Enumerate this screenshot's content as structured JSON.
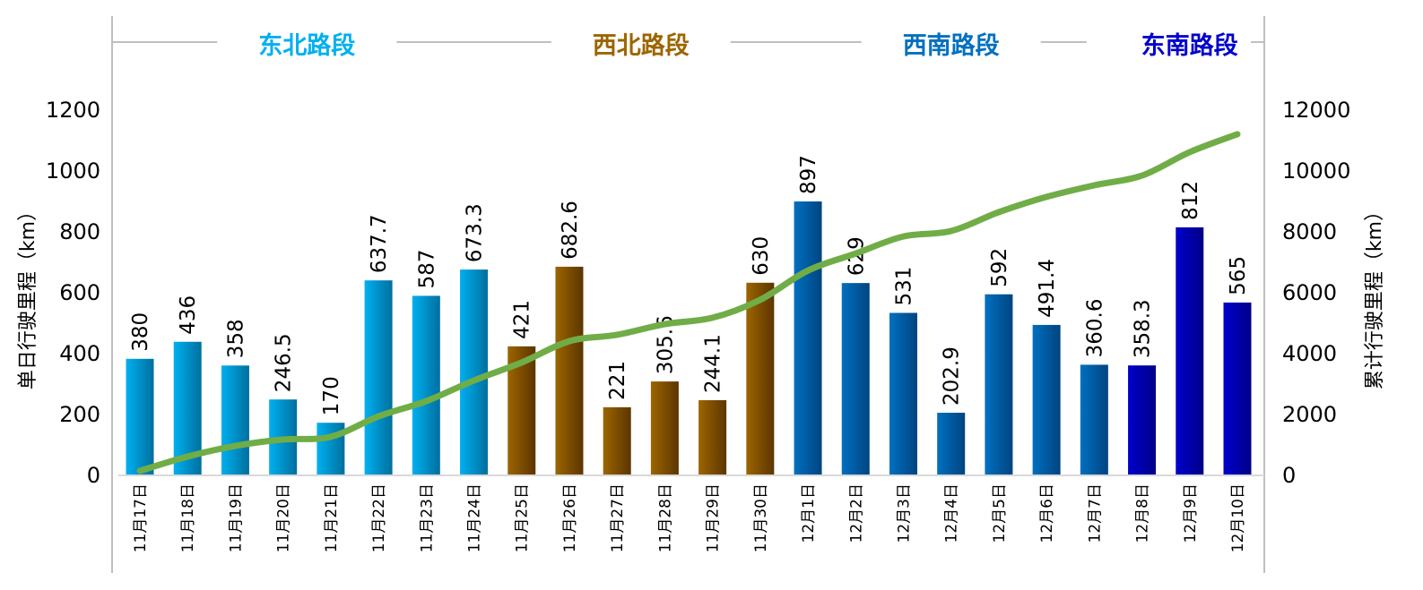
{
  "chart_data": {
    "type": "bar",
    "title": "",
    "categories": [
      "11月17日",
      "11月18日",
      "11月19日",
      "11月20日",
      "11月21日",
      "11月22日",
      "11月23日",
      "11月24日",
      "11月25日",
      "11月26日",
      "11月27日",
      "11月28日",
      "11月29日",
      "11月30日",
      "12月1日",
      "12月2日",
      "12月3日",
      "12月4日",
      "12月5日",
      "12月6日",
      "12月7日",
      "12月8日",
      "12月9日",
      "12月10日"
    ],
    "series": [
      {
        "name": "单日行驶里程",
        "type": "bar",
        "axis": "left",
        "values": [
          380,
          436,
          358,
          246.5,
          170,
          637.7,
          587,
          673.3,
          421,
          682.6,
          221,
          305.6,
          244.1,
          630,
          897,
          629,
          531,
          202.9,
          592,
          491.4,
          360.6,
          358.3,
          812,
          565
        ],
        "labels": [
          "380",
          "436",
          "358",
          "246.5",
          "170",
          "637.7",
          "587",
          "673.3",
          "421",
          "682.6",
          "221",
          "305.6",
          "244.1",
          "630",
          "897",
          "629",
          "531",
          "202.9",
          "592",
          "491.4",
          "360.6",
          "358.3",
          "812",
          "565"
        ]
      },
      {
        "name": "累计行驶里程",
        "type": "line",
        "axis": "right",
        "color": "#70ad47",
        "values": [
          120,
          590,
          940,
          1150,
          1240,
          1910,
          2410,
          3090,
          3680,
          4380,
          4590,
          4940,
          5150,
          5740,
          6700,
          7260,
          7820,
          8000,
          8620,
          9120,
          9500,
          9820,
          10590,
          11180
        ]
      }
    ],
    "groups": [
      {
        "label": "东北路段",
        "start": 0,
        "end": 7,
        "color": "#00b0f0",
        "dark": "#006f9e"
      },
      {
        "label": "西北路段",
        "start": 8,
        "end": 13,
        "color": "#9c6500",
        "dark": "#5c3500"
      },
      {
        "label": "西南路段",
        "start": 14,
        "end": 20,
        "color": "#0070c0",
        "dark": "#004480"
      },
      {
        "label": "东南路段",
        "start": 21,
        "end": 23,
        "color": "#0000cc",
        "dark": "#000088"
      }
    ],
    "ylabel": "单日行驶里程（km）",
    "y2label": "累计行驶里程（km）",
    "ylim": [
      0,
      1200
    ],
    "y2lim": [
      0,
      12000
    ],
    "yticks": [
      "0",
      "200",
      "400",
      "600",
      "800",
      "1000",
      "1200"
    ],
    "y2ticks": [
      "0",
      "2000",
      "4000",
      "6000",
      "8000",
      "10000",
      "12000"
    ],
    "grid": false
  }
}
